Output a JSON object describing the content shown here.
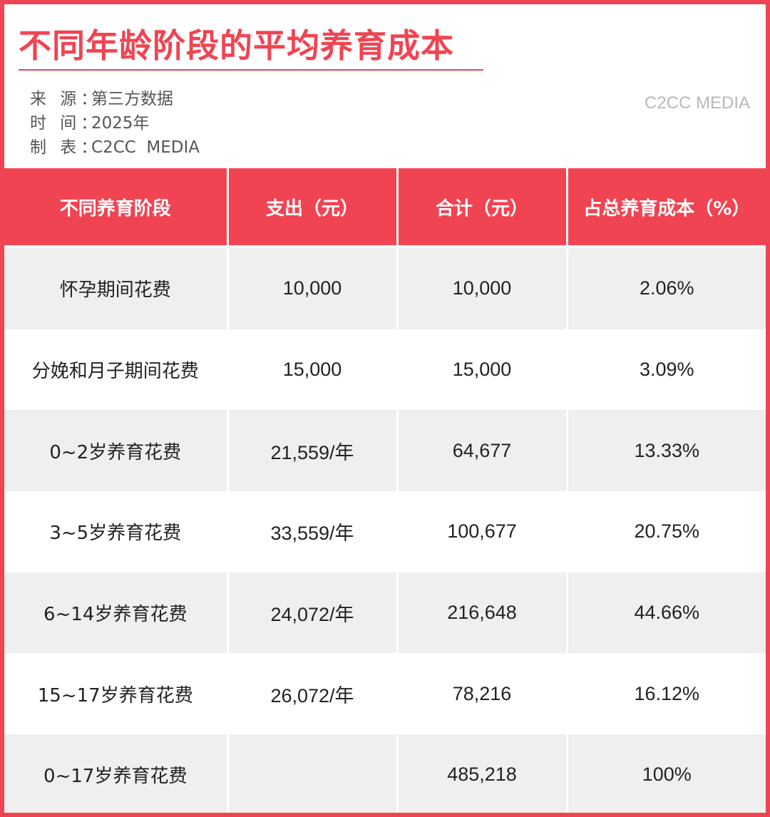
{
  "header": {
    "title": "不同年龄阶段的平均养育成本",
    "brand": "C2CC MEDIA",
    "meta": [
      {
        "key": "来 源：",
        "value": "第三方数据"
      },
      {
        "key": "时 间：",
        "value": "2025年"
      },
      {
        "key": "制 表：",
        "value": "C2CC  MEDIA"
      }
    ]
  },
  "colors": {
    "accent": "#f04452",
    "stripe": "#efefef"
  },
  "chart_data": {
    "type": "table",
    "columns": [
      "不同养育阶段",
      "支出（元）",
      "合计（元）",
      "占总养育成本（%）"
    ],
    "rows": [
      [
        "怀孕期间花费",
        "10,000",
        "10,000",
        "2.06%"
      ],
      [
        "分娩和月子期间花费",
        "15,000",
        "15,000",
        "3.09%"
      ],
      [
        "0~2岁养育花费",
        "21,559/年",
        "64,677",
        "13.33%"
      ],
      [
        "3~5岁养育花费",
        "33,559/年",
        "100,677",
        "20.75%"
      ],
      [
        "6~14岁养育花费",
        "24,072/年",
        "216,648",
        "44.66%"
      ],
      [
        "15~17岁养育花费",
        "26,072/年",
        "78,216",
        "16.12%"
      ],
      [
        "0~17岁养育花费",
        "",
        "485,218",
        "100%"
      ]
    ]
  }
}
